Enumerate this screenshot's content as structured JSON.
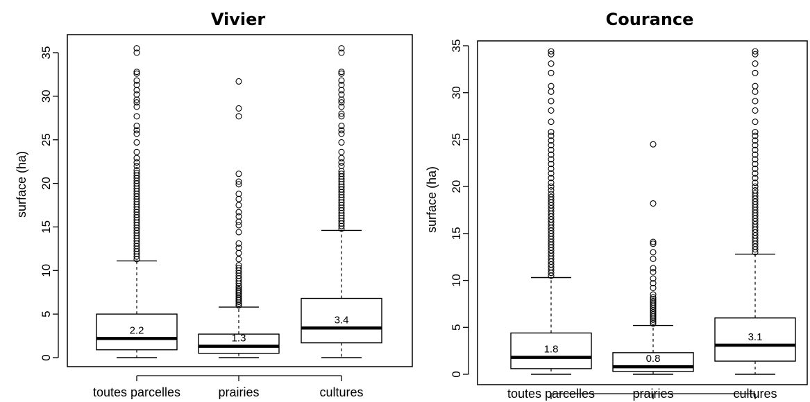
{
  "chart_data": [
    {
      "type": "box",
      "title": "Vivier",
      "xlabel": "",
      "ylabel": "surface (ha)",
      "ylim": [
        0,
        35
      ],
      "yticks": [
        "0",
        "5",
        "10",
        "15",
        "20",
        "25",
        "30",
        "35"
      ],
      "categories": [
        "toutes parcelles",
        "prairies",
        "cultures"
      ],
      "boxes": [
        {
          "min": 0,
          "q1": 0.9,
          "median": 2.2,
          "q3": 5.0,
          "whisker_high": 11.1,
          "median_label": "2.2",
          "outliers": [
            11.3,
            11.6,
            11.9,
            12.2,
            12.5,
            12.8,
            13.1,
            13.4,
            13.7,
            14.0,
            14.3,
            14.6,
            14.9,
            15.2,
            15.5,
            15.8,
            16.1,
            16.4,
            16.7,
            17.0,
            17.3,
            17.6,
            17.9,
            18.2,
            18.5,
            18.8,
            19.1,
            19.4,
            19.7,
            20.0,
            20.3,
            20.6,
            20.9,
            21.2,
            21.5,
            22.0,
            22.4,
            22.9,
            23.6,
            24.7,
            25.7,
            26.1,
            26.6,
            27.7,
            28.8,
            29.3,
            29.6,
            30.2,
            30.7,
            31.3,
            31.8,
            32.6,
            32.8,
            35.0,
            35.5
          ]
        },
        {
          "min": 0,
          "q1": 0.5,
          "median": 1.3,
          "q3": 2.7,
          "whisker_high": 5.8,
          "median_label": "1.3",
          "outliers": [
            6.0,
            6.2,
            6.4,
            6.6,
            6.8,
            7.0,
            7.2,
            7.4,
            7.6,
            7.8,
            8.0,
            8.2,
            8.5,
            8.8,
            9.1,
            9.4,
            9.7,
            10.0,
            10.3,
            10.6,
            11.3,
            12.0,
            12.6,
            13.1,
            14.4,
            15.2,
            15.6,
            16.2,
            16.7,
            17.5,
            18.2,
            18.8,
            19.9,
            20.2,
            21.1,
            27.7,
            28.6,
            31.7
          ]
        },
        {
          "min": 0,
          "q1": 1.7,
          "median": 3.4,
          "q3": 6.8,
          "whisker_high": 14.6,
          "median_label": "3.4",
          "outliers": [
            14.8,
            15.1,
            15.4,
            15.7,
            16.0,
            16.3,
            16.6,
            16.9,
            17.2,
            17.5,
            17.8,
            18.1,
            18.4,
            18.7,
            19.0,
            19.3,
            19.6,
            19.9,
            20.2,
            20.5,
            20.8,
            21.1,
            21.4,
            22.0,
            22.4,
            22.9,
            23.6,
            24.7,
            25.7,
            26.1,
            26.6,
            27.7,
            28.0,
            28.8,
            29.3,
            29.6,
            30.2,
            30.7,
            31.3,
            31.8,
            32.6,
            32.8,
            35.0,
            35.5
          ]
        }
      ]
    },
    {
      "type": "box",
      "title": "Courance",
      "xlabel": "",
      "ylabel": "surface (ha)",
      "ylim": [
        0,
        35
      ],
      "yticks": [
        "0",
        "5",
        "10",
        "15",
        "20",
        "25",
        "30",
        "35"
      ],
      "categories": [
        "toutes parcelles",
        "prairies",
        "cultures"
      ],
      "boxes": [
        {
          "min": 0,
          "q1": 0.6,
          "median": 1.8,
          "q3": 4.4,
          "whisker_high": 10.3,
          "median_label": "1.8",
          "outliers": [
            10.5,
            10.8,
            11.1,
            11.4,
            11.7,
            12.0,
            12.3,
            12.6,
            12.9,
            13.2,
            13.5,
            13.8,
            14.1,
            14.4,
            14.7,
            15.0,
            15.3,
            15.6,
            15.9,
            16.2,
            16.5,
            16.8,
            17.1,
            17.4,
            17.7,
            18.0,
            18.3,
            18.6,
            18.9,
            19.2,
            19.6,
            20.0,
            20.4,
            20.9,
            21.4,
            21.9,
            22.4,
            22.9,
            23.4,
            23.9,
            24.4,
            24.9,
            25.4,
            25.8,
            26.9,
            28.1,
            29.1,
            30.1,
            30.7,
            32.1,
            33.1,
            34.1,
            34.4
          ]
        },
        {
          "min": 0,
          "q1": 0.3,
          "median": 0.8,
          "q3": 2.3,
          "whisker_high": 5.2,
          "median_label": "0.8",
          "outliers": [
            5.4,
            5.6,
            5.8,
            6.0,
            6.2,
            6.4,
            6.6,
            6.8,
            7.0,
            7.2,
            7.4,
            7.6,
            7.8,
            8.0,
            8.2,
            8.5,
            9.2,
            9.7,
            10.2,
            10.9,
            11.3,
            12.3,
            13.0,
            13.9,
            14.1,
            18.2,
            24.5
          ]
        },
        {
          "min": 0,
          "q1": 1.4,
          "median": 3.1,
          "q3": 6.0,
          "whisker_high": 12.8,
          "median_label": "3.1",
          "outliers": [
            13.0,
            13.3,
            13.6,
            13.9,
            14.2,
            14.5,
            14.8,
            15.1,
            15.4,
            15.7,
            16.0,
            16.3,
            16.6,
            16.9,
            17.2,
            17.5,
            17.8,
            18.1,
            18.4,
            18.7,
            19.0,
            19.3,
            19.6,
            20.0,
            20.4,
            20.9,
            21.4,
            21.9,
            22.4,
            22.9,
            23.4,
            23.9,
            24.4,
            24.9,
            25.4,
            25.8,
            26.9,
            28.1,
            29.1,
            30.1,
            30.7,
            32.1,
            33.1,
            34.1,
            34.4
          ]
        }
      ]
    }
  ]
}
